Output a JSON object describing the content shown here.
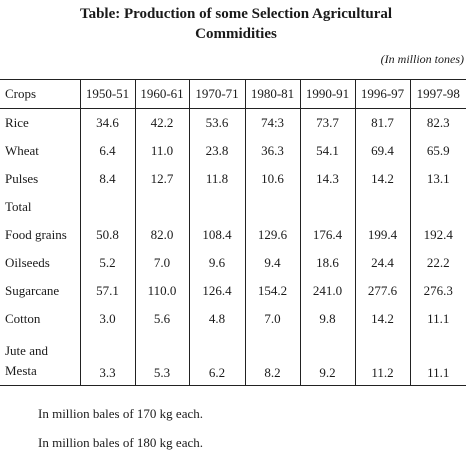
{
  "title_line1": "Table: Production of some Selection Agricultural",
  "title_line2": "Commidities",
  "unit": "(In million tones)",
  "columns": [
    "Crops",
    "1950-51",
    "1960-61",
    "1970-71",
    "1980-81",
    "1990-91",
    "1996-97",
    "1997-98"
  ],
  "rows": [
    {
      "crop": "Rice",
      "values": [
        "34.6",
        "42.2",
        "53.6",
        "74:3",
        "73.7",
        "81.7",
        "82.3"
      ]
    },
    {
      "crop": "Wheat",
      "values": [
        "6.4",
        "11.0",
        "23.8",
        "36.3",
        "54.1",
        "69.4",
        "65.9"
      ]
    },
    {
      "crop": "Pulses",
      "values": [
        "8.4",
        "12.7",
        "11.8",
        "10.6",
        "14.3",
        "14.2",
        "13.1"
      ]
    },
    {
      "crop": "Total",
      "values": [
        "",
        "",
        "",
        "",
        "",
        "",
        ""
      ]
    },
    {
      "crop": "Food grains",
      "values": [
        "50.8",
        "82.0",
        "108.4",
        "129.6",
        "176.4",
        "199.4",
        "192.4"
      ]
    },
    {
      "crop": "Oilseeds",
      "values": [
        "5.2",
        "7.0",
        "9.6",
        "9.4",
        "18.6",
        "24.4",
        "22.2"
      ]
    },
    {
      "crop": "Sugarcane",
      "values": [
        "57.1",
        "110.0",
        "126.4",
        "154.2",
        "241.0",
        "277.6",
        "276.3"
      ]
    },
    {
      "crop": "Cotton",
      "values": [
        "3.0",
        "5.6",
        "4.8",
        "7.0",
        "9.8",
        "14.2",
        "11.1"
      ]
    },
    {
      "crop_line1": "Jute and",
      "crop_line2": "Mesta",
      "values": [
        "3.3",
        "5.3",
        "6.2",
        "8.2",
        "9.2",
        "11.2",
        "11.1"
      ]
    }
  ],
  "notes": [
    "In million bales of 170 kg each.",
    "In million bales of 180 kg each."
  ]
}
